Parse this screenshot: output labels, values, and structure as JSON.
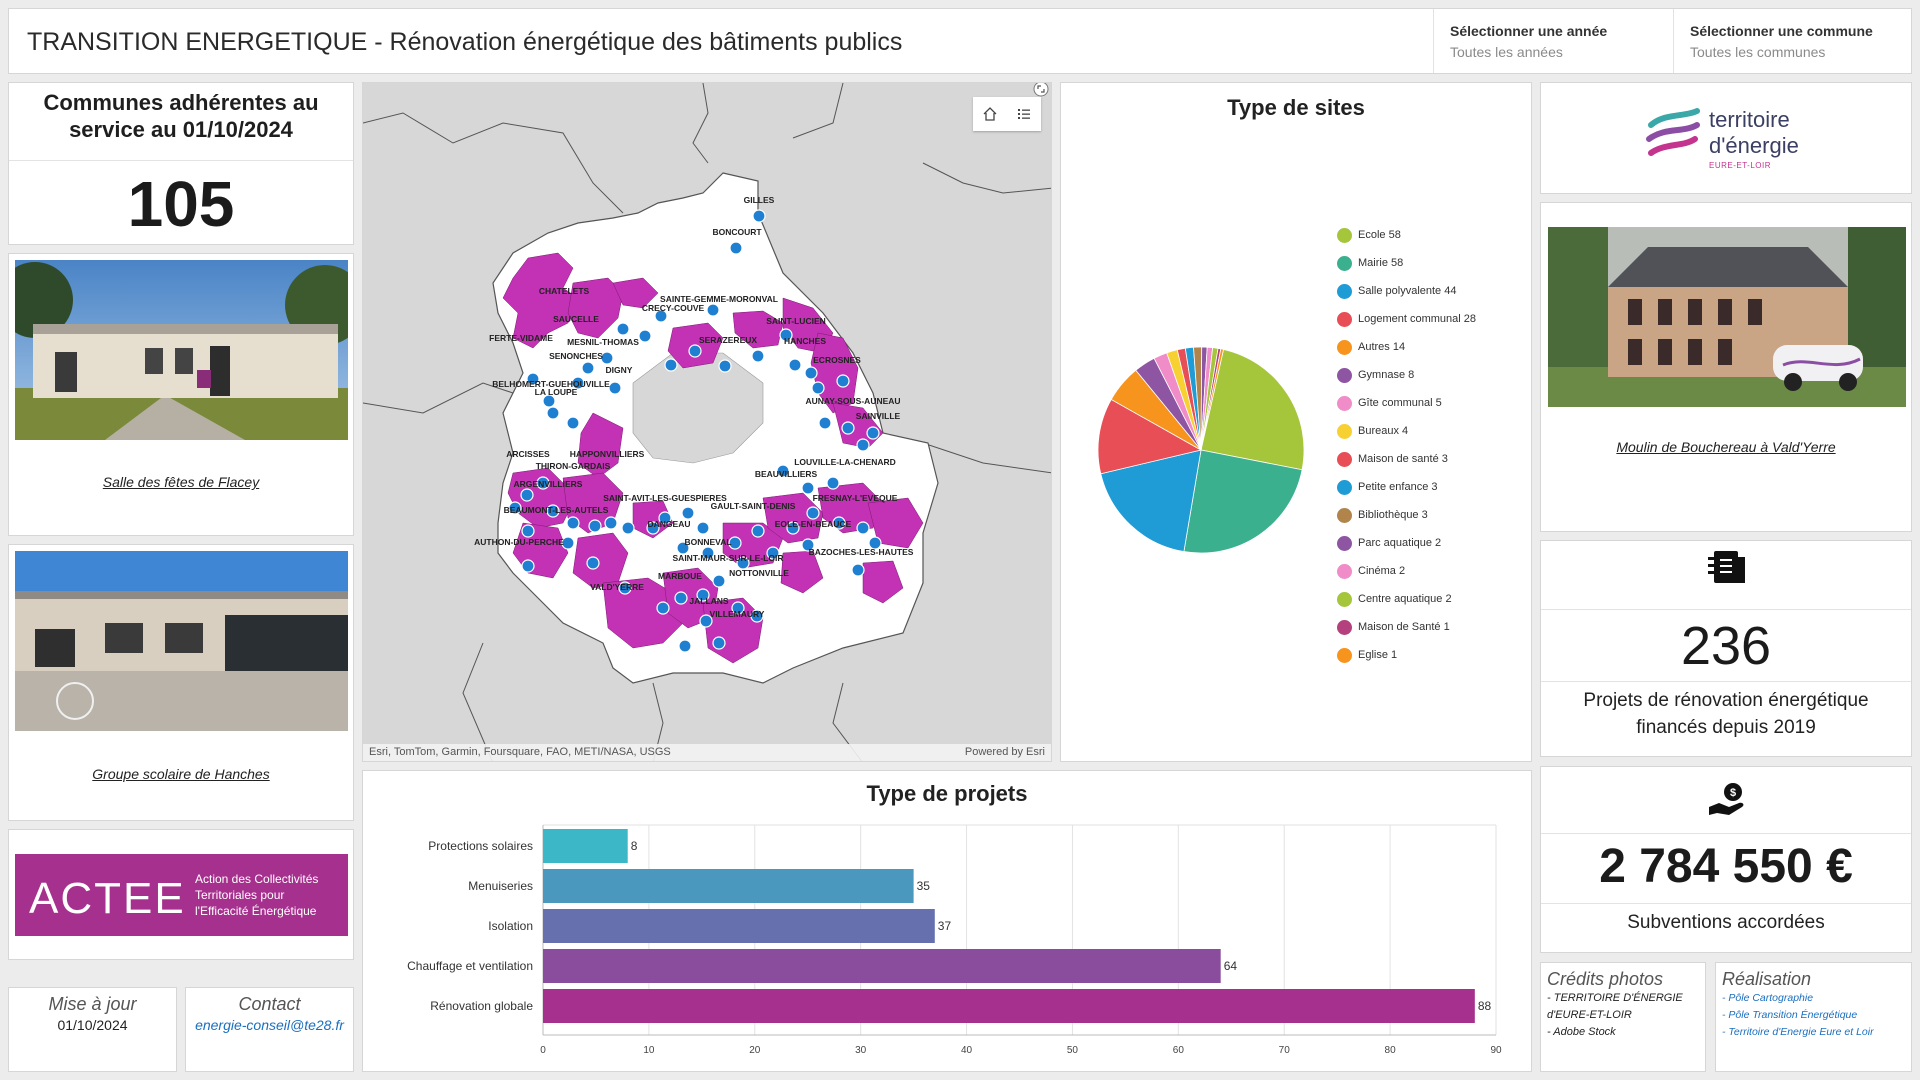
{
  "header": {
    "title": "TRANSITION ENERGETIQUE - Rénovation énergétique des bâtiments publics",
    "year_label": "Sélectionner une année",
    "year_value": "Toutes les années",
    "commune_label": "Sélectionner une commune",
    "commune_value": "Toutes les communes"
  },
  "communes_card": {
    "title": "Communes adhérentes au service au 01/10/2024",
    "value": "105"
  },
  "photos": {
    "photo1_caption": "Salle des fêtes de Flacey",
    "photo2_caption": "Groupe scolaire de Hanches",
    "photo3_caption": "Moulin de Bouchereau à Vald'Yerre"
  },
  "actee": {
    "logo_text": "ACTEE",
    "tagline_1": "Action des Collectivités",
    "tagline_2": "Territoriales pour",
    "tagline_3": "l'Efficacité Énergétique"
  },
  "update": {
    "label": "Mise à jour",
    "date": "01/10/2024"
  },
  "contact": {
    "label": "Contact",
    "email": "energie-conseil@te28.fr"
  },
  "map": {
    "attribution": "Esri, TomTom, Garmin, Foursquare, FAO, METI/NASA, USGS",
    "powered_by": "Powered by Esri",
    "towns": [
      "GILLES",
      "BONCOURT",
      "SAINTE-GEMME-MORONVAL",
      "CRECY-COUVE",
      "CHATELETS",
      "SAUCELLE",
      "SAINT-LUCIEN",
      "FERTE-VIDAME",
      "MESNIL-THOMAS",
      "SERAZEREUX",
      "HANCHES",
      "SENONCHES",
      "ECROSNES",
      "DIGNY",
      "BELHOMERT-GUEHOUVILLE",
      "LA LOUPE",
      "AUNAY-SOUS-AUNEAU",
      "SAINVILLE",
      "LOUVILLE-LA-CHENARD",
      "HAPPONVILLIERS",
      "ARCISSES",
      "THIRON-GARDAIS",
      "BEAUVILLIERS",
      "ARGENVILLIERS",
      "FRESNAY-L'EVEQUE",
      "SAINT-AVIT-LES-GUESPIERES",
      "GAULT-SAINT-DENIS",
      "BEAUMONT-LES-AUTELS",
      "DANGEAU",
      "EOLE-EN-BEAUCE",
      "AUTHON-DU-PERCHE",
      "BONNEVAL",
      "BAZOCHES-LES-HAUTES",
      "SAINT-MAUR-SUR-LE-LOIR",
      "NOTTONVILLE",
      "MARBOUE",
      "VALD'YERRE",
      "JALLANS",
      "VILLEMAURY"
    ]
  },
  "sites_chart": {
    "title": "Type de sites"
  },
  "chart_data": [
    {
      "type": "pie",
      "title": "Type de sites",
      "labels": [
        "Ecole",
        "Mairie",
        "Salle polyvalente",
        "Logement communal",
        "Autres",
        "Gymnase",
        "Gîte communal",
        "Bureaux",
        "Maison de santé",
        "Petite enfance",
        "Bibliothèque",
        "Parc aquatique",
        "Cinéma",
        "Centre aquatique",
        "Maison de Santé",
        "Eglise"
      ],
      "values": [
        58,
        58,
        44,
        28,
        14,
        8,
        5,
        4,
        3,
        3,
        3,
        2,
        2,
        2,
        1,
        1
      ],
      "colors": [
        "#a5c63b",
        "#3bb08f",
        "#1f9bd6",
        "#e84e55",
        "#f7941d",
        "#8e55a3",
        "#f08cc8",
        "#f7d131",
        "#e84e55",
        "#1f9bd6",
        "#b0844a",
        "#8e55a3",
        "#f08cc8",
        "#a5c63b",
        "#b4407e",
        "#f7941d"
      ],
      "legend_position": "right"
    },
    {
      "type": "bar",
      "orientation": "horizontal",
      "title": "Type de projets",
      "categories": [
        "Protections solaires",
        "Menuiseries",
        "Isolation",
        "Chauffage et ventilation",
        "Rénovation globale"
      ],
      "values": [
        8,
        35,
        37,
        64,
        88
      ],
      "colors": [
        "#3bb7c8",
        "#4a98be",
        "#6670ae",
        "#8a4c9c",
        "#a6308d"
      ],
      "xlim": [
        0,
        90
      ],
      "xticks": [
        0,
        10,
        20,
        30,
        40,
        50,
        60,
        70,
        80,
        90
      ],
      "grid": true
    }
  ],
  "te28": {
    "line1": "territoire",
    "line2": "d'énergie",
    "line3": "EURE-ET-LOIR"
  },
  "projects_card": {
    "value": "236",
    "label_1": "Projets de rénovation énergétique",
    "label_2": "financés depuis 2019",
    "icon": "document-icon"
  },
  "grants_card": {
    "value": "2 784 550 €",
    "label": "Subventions accordées",
    "icon": "hand-money-icon"
  },
  "credits": {
    "title": "Crédits photos",
    "line1": "- TERRITOIRE D'ÉNERGIE",
    "line2": "d'EURE-ET-LOIR",
    "line3": "- Adobe Stock"
  },
  "realisation": {
    "title": "Réalisation",
    "link1": "- Pôle Cartographie",
    "link2": "- Pôle Transition Énergétique",
    "link3": "- Territoire d'Energie Eure et Loir"
  }
}
